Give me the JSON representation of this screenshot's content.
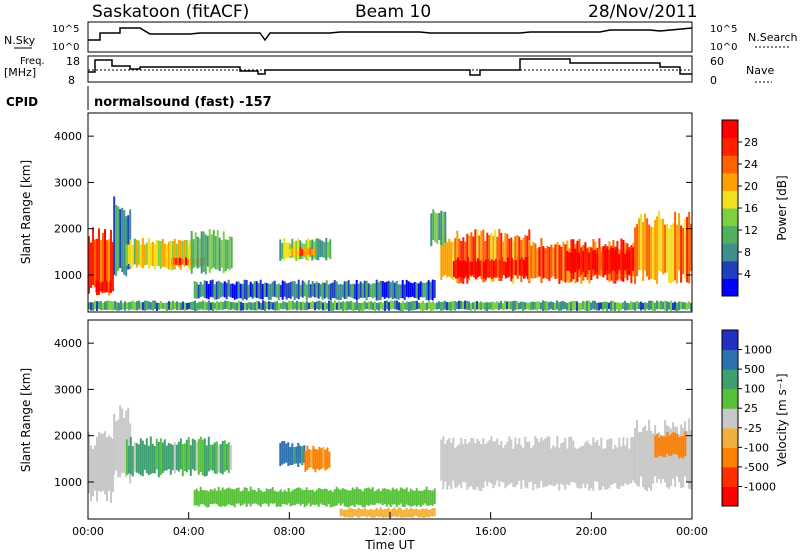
{
  "header": {
    "station": "Saskatoon (fitACF)",
    "beam": "Beam 10",
    "date": "28/Nov/2011"
  },
  "top_panels": {
    "nsky_label": "N.Sky",
    "nsky_ticks": [
      "10^5",
      "10^0"
    ],
    "nsearch_label": "N.Search",
    "nsearch_ticks": [
      "10^5",
      "10^0"
    ],
    "freq_label": "Freq.",
    "freq_unit": "[MHz]",
    "freq_ticks": [
      "18",
      "8"
    ],
    "nave_label": "Nave",
    "nave_ticks": [
      "60",
      "0"
    ],
    "cpid_label": "CPID",
    "cpid_value": "normalsound (fast) -157"
  },
  "colorbars": {
    "power": {
      "label": "Power [dB]",
      "ticks": [
        "28",
        "24",
        "20",
        "16",
        "12",
        "8",
        "4"
      ],
      "colors": [
        "#0000ff",
        "#1f3fbf",
        "#3f8f8f",
        "#4fb060",
        "#7fd040",
        "#f0e020",
        "#ffa000",
        "#ff6000",
        "#ff2000",
        "#ff0000"
      ]
    },
    "velocity": {
      "label": "Velocity [m s⁻¹]",
      "ticks": [
        "1000",
        "500",
        "100",
        "25",
        "-25",
        "-100",
        "-500",
        "-1000"
      ],
      "colors": [
        "#2030c0",
        "#2f70b0",
        "#3f9f6f",
        "#58c03a",
        "#c8c8c8",
        "#f0b040",
        "#ff8000",
        "#ff3000",
        "#ff0000"
      ]
    }
  },
  "chart_data": [
    {
      "type": "heatmap",
      "name": "power",
      "ylabel": "Slant Range [km]",
      "xlim": [
        "00:00",
        "24:00"
      ],
      "ylim": [
        200,
        4500
      ],
      "y_ticks": [
        "1000",
        "2000",
        "3000",
        "4000"
      ],
      "regions": [
        {
          "t0": 0.0,
          "t1": 1.0,
          "r0": 500,
          "r1": 2100,
          "v": 24
        },
        {
          "t0": 0.3,
          "t1": 0.9,
          "r0": 600,
          "r1": 900,
          "v": 28
        },
        {
          "t0": 1.0,
          "t1": 1.7,
          "r0": 900,
          "r1": 2700,
          "v": 8
        },
        {
          "t0": 1.5,
          "t1": 4.2,
          "r0": 1100,
          "r1": 1800,
          "v": 16
        },
        {
          "t0": 3.3,
          "t1": 4.6,
          "r0": 1200,
          "r1": 1400,
          "v": 24
        },
        {
          "t0": 4.0,
          "t1": 5.7,
          "r0": 1000,
          "r1": 2000,
          "v": 12
        },
        {
          "t0": 7.6,
          "t1": 9.6,
          "r0": 1300,
          "r1": 1800,
          "v": 12
        },
        {
          "t0": 8.0,
          "t1": 9.0,
          "r0": 1400,
          "r1": 1600,
          "v": 20
        },
        {
          "t0": 4.2,
          "t1": 13.8,
          "r0": 450,
          "r1": 900,
          "v": 6
        },
        {
          "t0": 0.0,
          "t1": 24.0,
          "r0": 220,
          "r1": 450,
          "v": 10
        },
        {
          "t0": 14.0,
          "t1": 17.5,
          "r0": 800,
          "r1": 2000,
          "v": 22
        },
        {
          "t0": 14.5,
          "t1": 17.5,
          "r0": 900,
          "r1": 1400,
          "v": 28
        },
        {
          "t0": 17.5,
          "t1": 21.7,
          "r0": 800,
          "r1": 1800,
          "v": 24
        },
        {
          "t0": 19.0,
          "t1": 21.7,
          "r0": 1000,
          "r1": 1600,
          "v": 28
        },
        {
          "t0": 21.7,
          "t1": 24.0,
          "r0": 800,
          "r1": 2400,
          "v": 20
        },
        {
          "t0": 13.6,
          "t1": 14.2,
          "r0": 1600,
          "r1": 2500,
          "v": 8
        }
      ]
    },
    {
      "type": "heatmap",
      "name": "velocity",
      "ylabel": "Slant Range [km]",
      "xlabel": "Time UT",
      "xlim": [
        "00:00",
        "24:00"
      ],
      "ylim": [
        200,
        4500
      ],
      "y_ticks": [
        "1000",
        "2000",
        "3000",
        "4000"
      ],
      "x_ticks": [
        "00:00",
        "04:00",
        "08:00",
        "12:00",
        "16:00",
        "20:00",
        "00:00"
      ],
      "regions": [
        {
          "t0": 0.0,
          "t1": 1.0,
          "r0": 500,
          "r1": 2100,
          "v": 0
        },
        {
          "t0": 1.0,
          "t1": 1.7,
          "r0": 900,
          "r1": 2700,
          "v": 0
        },
        {
          "t0": 1.5,
          "t1": 5.7,
          "r0": 1100,
          "r1": 2000,
          "v": 150
        },
        {
          "t0": 7.6,
          "t1": 8.6,
          "r0": 1300,
          "r1": 1900,
          "v": 600
        },
        {
          "t0": 8.6,
          "t1": 9.6,
          "r0": 1200,
          "r1": 1800,
          "v": -200
        },
        {
          "t0": 4.2,
          "t1": 13.8,
          "r0": 450,
          "r1": 900,
          "v": 60
        },
        {
          "t0": 10.0,
          "t1": 13.8,
          "r0": 220,
          "r1": 450,
          "v": -60
        },
        {
          "t0": 14.0,
          "t1": 21.7,
          "r0": 800,
          "r1": 2000,
          "v": 0
        },
        {
          "t0": 21.7,
          "t1": 24.0,
          "r0": 800,
          "r1": 2400,
          "v": 0
        },
        {
          "t0": 22.5,
          "t1": 23.7,
          "r0": 1500,
          "r1": 2100,
          "v": -300
        }
      ]
    }
  ]
}
